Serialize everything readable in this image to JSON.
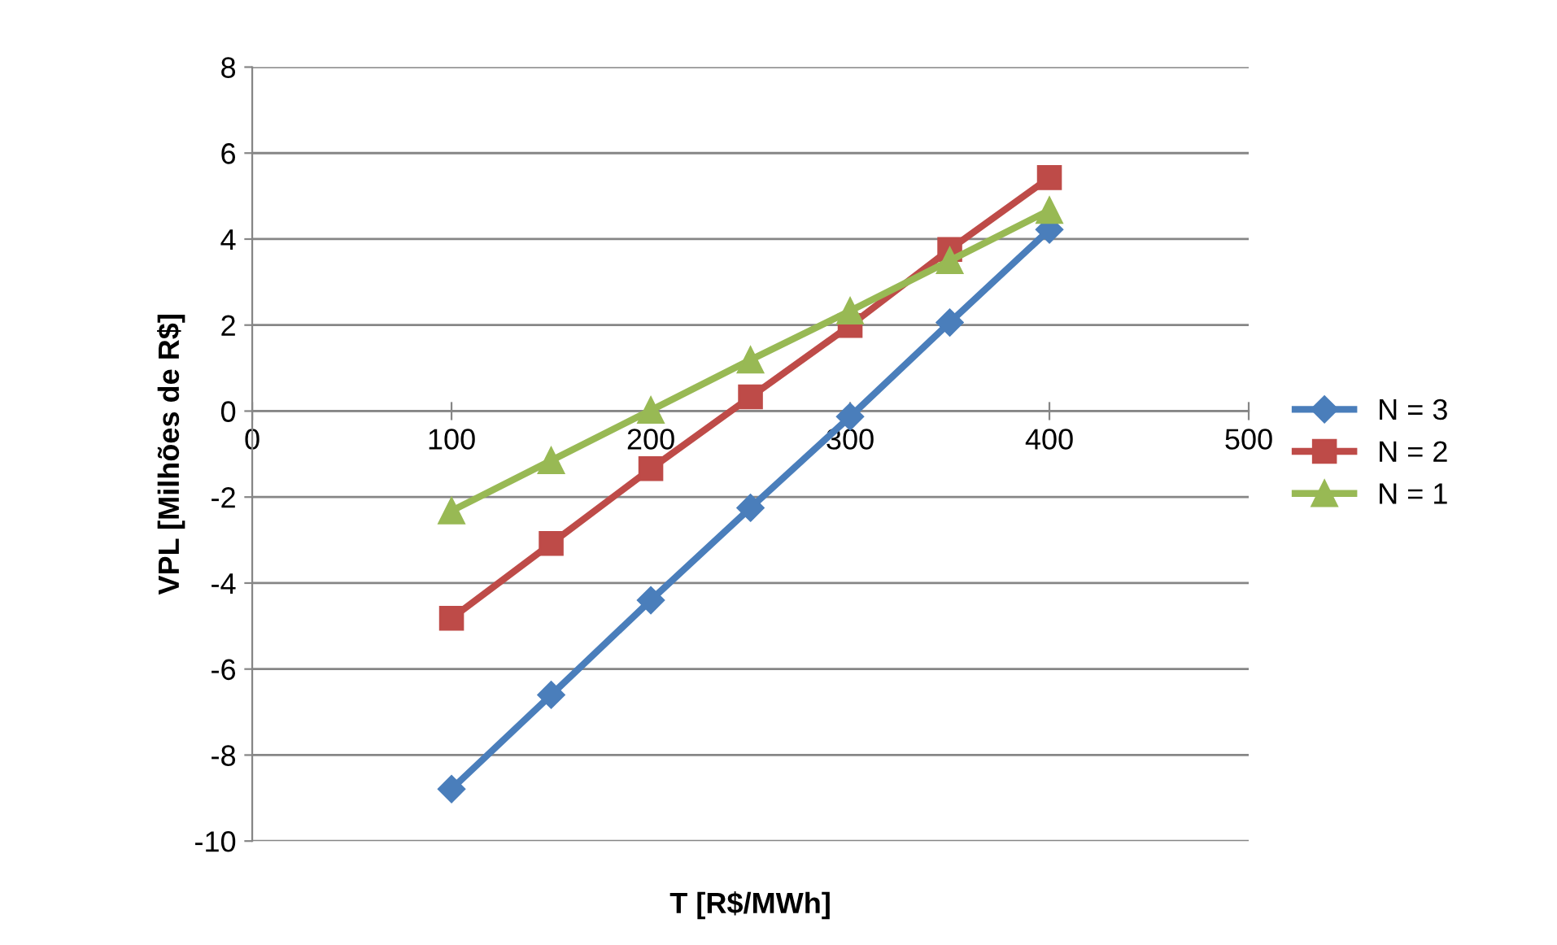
{
  "chart_data": {
    "type": "line",
    "xlabel": "T [R$/MWh]",
    "ylabel": "VPL [Milhões de R$]",
    "x": [
      100,
      150,
      200,
      250,
      300,
      350,
      400
    ],
    "series": [
      {
        "name": "N = 3",
        "color": "#4a7ebb",
        "marker": "diamond",
        "values": [
          -8.79,
          -6.6,
          -4.4,
          -2.25,
          -0.13,
          2.06,
          4.22
        ]
      },
      {
        "name": "N = 2",
        "color": "#be4b48",
        "marker": "square",
        "values": [
          -4.82,
          -3.08,
          -1.34,
          0.33,
          1.99,
          3.76,
          5.43
        ]
      },
      {
        "name": "N = 1",
        "color": "#98b954",
        "marker": "triangle",
        "values": [
          -2.32,
          -1.15,
          0.02,
          1.19,
          2.33,
          3.5,
          4.67
        ]
      }
    ],
    "xlim": [
      0,
      500
    ],
    "xticks": [
      0,
      100,
      200,
      300,
      400,
      500
    ],
    "ylim": [
      -10,
      8
    ],
    "yticks": [
      -10,
      -8,
      -6,
      -4,
      -2,
      0,
      2,
      4,
      6,
      8
    ],
    "grid": "y",
    "legend": "right",
    "line_style": "solid"
  }
}
